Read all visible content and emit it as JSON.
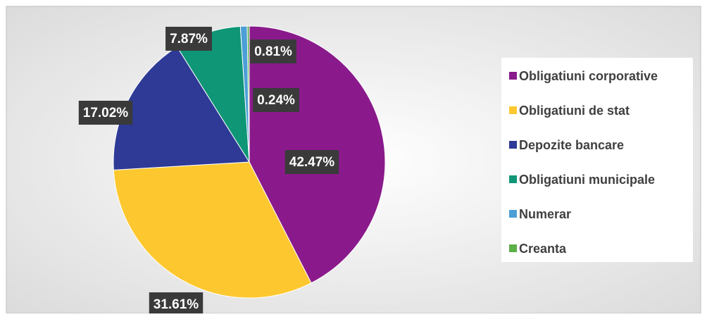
{
  "chart_data": {
    "type": "pie",
    "categories": [
      "Obligatiuni corporative",
      "Obligatiuni de stat",
      "Depozite bancare",
      "Obligatiuni municipale",
      "Numerar",
      "Creanta"
    ],
    "values": [
      42.47,
      31.61,
      17.02,
      7.87,
      0.81,
      0.24
    ],
    "value_labels": [
      "42.47%",
      "31.61%",
      "17.02%",
      "7.87%",
      "0.81%",
      "0.24%"
    ],
    "colors": [
      "#8a1a8c",
      "#fdc82f",
      "#2e3a96",
      "#0e9676",
      "#4c9fd6",
      "#5bb047"
    ],
    "legend": "right"
  }
}
